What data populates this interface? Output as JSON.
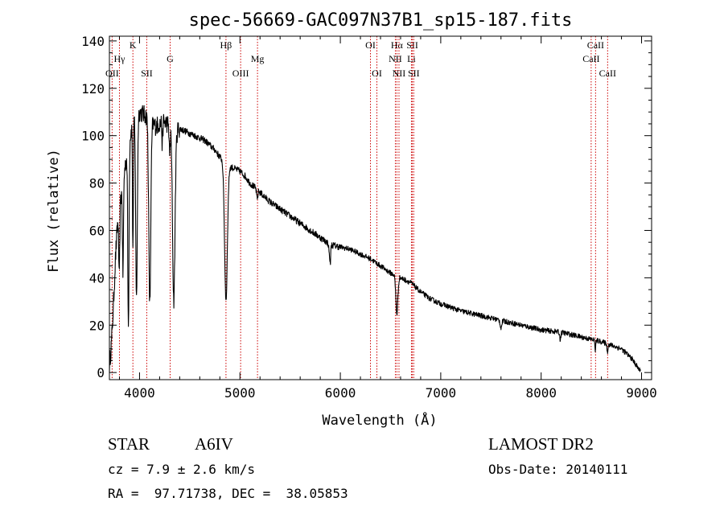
{
  "chart_data": {
    "type": "line",
    "title": "spec-56669-GAC097N37B1_sp15-187.fits",
    "xlabel": "Wavelength (Å)",
    "ylabel": "Flux (relative)",
    "xlim": [
      3700,
      9100
    ],
    "ylim": [
      -3,
      142
    ],
    "xticks": [
      4000,
      5000,
      6000,
      7000,
      8000,
      9000
    ],
    "yticks": [
      0,
      20,
      40,
      60,
      80,
      100,
      120,
      140
    ],
    "grid": false,
    "line_color": "#000000",
    "marker_color": "#cc0000",
    "continuum": [
      [
        3700,
        3
      ],
      [
        3720,
        12
      ],
      [
        3740,
        28
      ],
      [
        3760,
        48
      ],
      [
        3780,
        62
      ],
      [
        3800,
        70
      ],
      [
        3830,
        78
      ],
      [
        3860,
        88
      ],
      [
        3890,
        95
      ],
      [
        3920,
        103
      ],
      [
        3960,
        108
      ],
      [
        4000,
        110
      ],
      [
        4040,
        109
      ],
      [
        4080,
        108
      ],
      [
        4120,
        106
      ],
      [
        4160,
        104
      ],
      [
        4200,
        105
      ],
      [
        4240,
        106
      ],
      [
        4280,
        105
      ],
      [
        4320,
        103
      ],
      [
        4360,
        102
      ],
      [
        4400,
        103
      ],
      [
        4450,
        102
      ],
      [
        4500,
        101
      ],
      [
        4550,
        100
      ],
      [
        4600,
        99
      ],
      [
        4650,
        98
      ],
      [
        4700,
        96
      ],
      [
        4750,
        94
      ],
      [
        4800,
        91
      ],
      [
        4850,
        89
      ],
      [
        4900,
        87
      ],
      [
        4950,
        86
      ],
      [
        5000,
        85
      ],
      [
        5050,
        83
      ],
      [
        5100,
        80
      ],
      [
        5200,
        76
      ],
      [
        5300,
        72
      ],
      [
        5400,
        69
      ],
      [
        5500,
        66
      ],
      [
        5600,
        63
      ],
      [
        5700,
        60
      ],
      [
        5800,
        57
      ],
      [
        5900,
        54
      ],
      [
        6000,
        53
      ],
      [
        6100,
        52
      ],
      [
        6200,
        50
      ],
      [
        6300,
        48
      ],
      [
        6400,
        45
      ],
      [
        6500,
        42
      ],
      [
        6600,
        40
      ],
      [
        6700,
        38
      ],
      [
        6800,
        34
      ],
      [
        6900,
        31
      ],
      [
        7000,
        29
      ],
      [
        7200,
        26
      ],
      [
        7400,
        24
      ],
      [
        7600,
        22
      ],
      [
        7800,
        20
      ],
      [
        8000,
        18
      ],
      [
        8200,
        17
      ],
      [
        8400,
        15
      ],
      [
        8600,
        13
      ],
      [
        8800,
        10
      ],
      [
        8900,
        6
      ],
      [
        8980,
        1
      ]
    ],
    "absorption": [
      {
        "center": 3798,
        "depth": 30,
        "width": 5
      },
      {
        "center": 3835,
        "depth": 38,
        "width": 5
      },
      {
        "center": 3889,
        "depth": 75,
        "width": 6
      },
      {
        "center": 3934,
        "depth": 55,
        "width": 4
      },
      {
        "center": 3970,
        "depth": 78,
        "width": 8
      },
      {
        "center": 4102,
        "depth": 78,
        "width": 10
      },
      {
        "center": 4227,
        "depth": 10,
        "width": 4
      },
      {
        "center": 4300,
        "depth": 12,
        "width": 5
      },
      {
        "center": 4341,
        "depth": 72,
        "width": 12
      },
      {
        "center": 4861,
        "depth": 58,
        "width": 14
      },
      {
        "center": 5172,
        "depth": 4,
        "width": 6
      },
      {
        "center": 5890,
        "depth": 4,
        "width": 5
      },
      {
        "center": 5900,
        "depth": 8,
        "width": 4
      },
      {
        "center": 6563,
        "depth": 16,
        "width": 10
      },
      {
        "center": 7600,
        "depth": 3,
        "width": 8
      },
      {
        "center": 8190,
        "depth": 3,
        "width": 6
      },
      {
        "center": 8540,
        "depth": 4,
        "width": 4
      },
      {
        "center": 8660,
        "depth": 4,
        "width": 4
      }
    ],
    "lines": [
      {
        "label": "Hγ",
        "wavelength": 3800,
        "row": 1
      },
      {
        "label": "K",
        "wavelength": 3934,
        "row": 0
      },
      {
        "label": "OII",
        "wavelength": 3727,
        "row": 2
      },
      {
        "label": "SII",
        "wavelength": 4072,
        "row": 2
      },
      {
        "label": "G",
        "wavelength": 4305,
        "row": 1
      },
      {
        "label": "Hβ",
        "wavelength": 4861,
        "row": 0
      },
      {
        "label": "OIII",
        "wavelength": 5007,
        "row": 2
      },
      {
        "label": "Mg",
        "wavelength": 5175,
        "row": 1
      },
      {
        "label": "OI",
        "wavelength": 6300,
        "row": 0
      },
      {
        "label": "OI",
        "wavelength": 6364,
        "row": 2
      },
      {
        "label": "Hα",
        "wavelength": 6563,
        "row": 0
      },
      {
        "label": "NII",
        "wavelength": 6548,
        "row": 1
      },
      {
        "label": "NII",
        "wavelength": 6584,
        "row": 2
      },
      {
        "label": "SII",
        "wavelength": 6717,
        "row": 0
      },
      {
        "label": "Li",
        "wavelength": 6708,
        "row": 1
      },
      {
        "label": "SII",
        "wavelength": 6731,
        "row": 2
      },
      {
        "label": "CaII",
        "wavelength": 8542,
        "row": 0
      },
      {
        "label": "CaII",
        "wavelength": 8498,
        "row": 1
      },
      {
        "label": "CaII",
        "wavelength": 8662,
        "row": 2
      }
    ]
  },
  "info": {
    "class_label": "STAR",
    "subclass": "A6IV",
    "survey": "LAMOST DR2",
    "cz": "cz = 7.9 ± 2.6 km/s",
    "obs_date": "Obs-Date: 20140111",
    "coords": "RA =  97.71738, DEC =  38.05853"
  }
}
